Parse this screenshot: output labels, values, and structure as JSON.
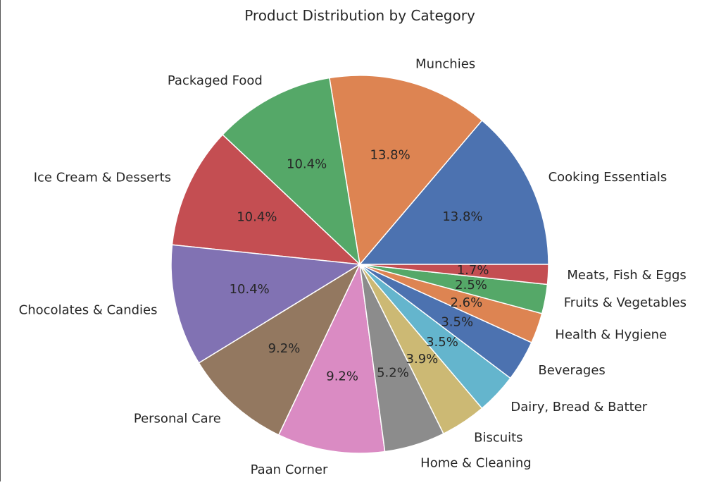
{
  "chart_data": {
    "type": "pie",
    "title": "Product Distribution by Category",
    "slices": [
      {
        "label": "Cooking Essentials",
        "value": 13.8,
        "pct_text": "13.8%",
        "color": "#4c72b0"
      },
      {
        "label": "Munchies",
        "value": 13.8,
        "pct_text": "13.8%",
        "color": "#dd8452"
      },
      {
        "label": "Packaged Food",
        "value": 10.4,
        "pct_text": "10.4%",
        "color": "#55a868"
      },
      {
        "label": "Ice Cream & Desserts",
        "value": 10.4,
        "pct_text": "10.4%",
        "color": "#c44e52"
      },
      {
        "label": "Chocolates & Candies",
        "value": 10.4,
        "pct_text": "10.4%",
        "color": "#8172b3"
      },
      {
        "label": "Personal Care",
        "value": 9.2,
        "pct_text": "9.2%",
        "color": "#937860"
      },
      {
        "label": "Paan Corner",
        "value": 9.2,
        "pct_text": "9.2%",
        "color": "#da8bc3"
      },
      {
        "label": "Home & Cleaning",
        "value": 5.2,
        "pct_text": "5.2%",
        "color": "#8c8c8c"
      },
      {
        "label": "Biscuits",
        "value": 3.9,
        "pct_text": "3.9%",
        "color": "#ccb974"
      },
      {
        "label": "Dairy, Bread & Batter",
        "value": 3.5,
        "pct_text": "3.5%",
        "color": "#64b5cd"
      },
      {
        "label": "Beverages",
        "value": 3.5,
        "pct_text": "3.5%",
        "color": "#4c72b0"
      },
      {
        "label": "Health & Hygiene",
        "value": 2.6,
        "pct_text": "2.6%",
        "color": "#dd8452"
      },
      {
        "label": "Fruits & Vegetables",
        "value": 2.5,
        "pct_text": "2.5%",
        "color": "#55a868"
      },
      {
        "label": "Meats, Fish & Eggs",
        "value": 1.7,
        "pct_text": "1.7%",
        "color": "#c44e52"
      }
    ],
    "start_angle": "3 o'clock",
    "direction": "counterclockwise",
    "legend": "none"
  }
}
